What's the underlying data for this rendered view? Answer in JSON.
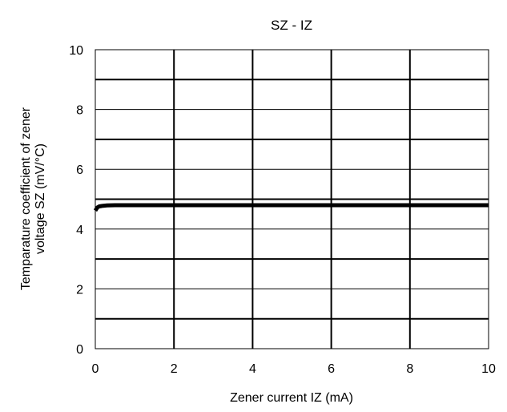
{
  "chart_data": {
    "type": "line",
    "title": "SZ - IZ",
    "xlabel": "Zener current IZ (mA)",
    "ylabel_lines": [
      "Temparature coefficient of zener",
      "voltage SZ (mV/°C)"
    ],
    "xlim": [
      0,
      10
    ],
    "ylim": [
      0,
      10
    ],
    "x_ticks": [
      "0",
      "2",
      "4",
      "6",
      "8",
      "10"
    ],
    "y_ticks": [
      "0",
      "2",
      "4",
      "6",
      "8",
      "10"
    ],
    "grid": true,
    "series": [
      {
        "x": [
          0.0,
          0.05,
          0.1,
          0.2,
          0.3,
          0.5,
          0.8,
          1,
          2,
          4,
          6,
          8,
          10
        ],
        "y": [
          4.62,
          4.72,
          4.76,
          4.78,
          4.79,
          4.8,
          4.8,
          4.8,
          4.8,
          4.8,
          4.8,
          4.8,
          4.8
        ]
      }
    ],
    "colors": {
      "line": "#000000",
      "grid": "#000000",
      "background": "#ffffff"
    }
  }
}
